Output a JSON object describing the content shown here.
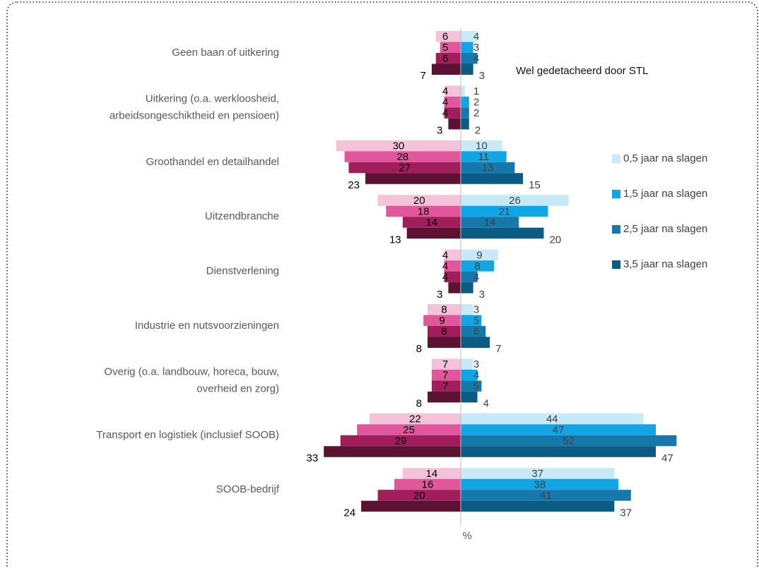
{
  "chart_data": {
    "type": "butterfly-bar",
    "annotation": "Wel gedetacheerd door STL",
    "x_label": "%",
    "xlim": [
      0,
      55
    ],
    "categories": [
      [
        "Geen baan of uitkering"
      ],
      [
        "Uitkering (o.a. werkloosheid,",
        "arbeidsongeschiktheid en pensioen)"
      ],
      [
        "Groothandel en detailhandel"
      ],
      [
        "Uitzendbranche"
      ],
      [
        "Dienstverlening"
      ],
      [
        "Industrie en nutsvoorzieningen"
      ],
      [
        "Overig (o.a. landbouw, horeca, bouw,",
        "overheid en zorg)"
      ],
      [
        "Transport en logistiek (inclusief SOOB)"
      ],
      [
        "SOOB-bedrijf"
      ]
    ],
    "series": [
      {
        "side": "left",
        "color": "#f4c3da",
        "values": [
          6,
          4,
          30,
          20,
          4,
          8,
          7,
          22,
          14
        ]
      },
      {
        "side": "left",
        "color": "#e0579c",
        "values": [
          5,
          4,
          28,
          18,
          4,
          9,
          7,
          25,
          16
        ]
      },
      {
        "side": "left",
        "color": "#a21d5c",
        "values": [
          6,
          4,
          27,
          14,
          4,
          8,
          7,
          29,
          20
        ]
      },
      {
        "side": "left",
        "color": "#5b1233",
        "values": [
          7,
          3,
          23,
          13,
          3,
          8,
          8,
          33,
          24
        ]
      },
      {
        "side": "right",
        "name": "0,5 jaar na slagen",
        "color": "#c8eaf8",
        "values": [
          4,
          1,
          10,
          26,
          9,
          3,
          3,
          44,
          37
        ]
      },
      {
        "side": "right",
        "name": "1,5 jaar na slagen",
        "color": "#12a5e5",
        "values": [
          3,
          2,
          11,
          21,
          8,
          5,
          4,
          47,
          38
        ]
      },
      {
        "side": "right",
        "name": "2,5 jaar na slagen",
        "color": "#1779ab",
        "values": [
          4,
          2,
          13,
          14,
          4,
          6,
          5,
          52,
          41
        ]
      },
      {
        "side": "right",
        "name": "3,5 jaar na slagen",
        "color": "#0b5b85",
        "values": [
          3,
          2,
          15,
          20,
          3,
          7,
          4,
          47,
          37
        ]
      }
    ]
  }
}
